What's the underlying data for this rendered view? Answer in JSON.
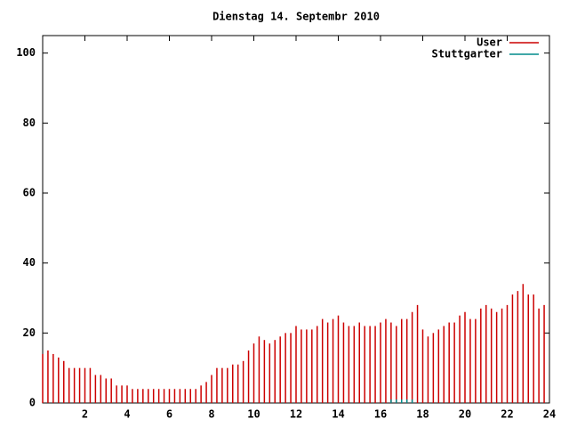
{
  "chart_data": {
    "type": "impulse",
    "title": "Dienstag 14. Septembr 2010",
    "xlim": [
      0,
      24
    ],
    "xticks": [
      2,
      4,
      6,
      8,
      10,
      12,
      14,
      16,
      18,
      20,
      22,
      24
    ],
    "ylim": [
      0,
      105
    ],
    "yticks": [
      0,
      20,
      40,
      60,
      80,
      100
    ],
    "legend": "top-right",
    "series": [
      {
        "name": "User",
        "color": "#cc0000",
        "x": [
          0,
          0.25,
          0.5,
          0.75,
          1,
          1.25,
          1.5,
          1.75,
          2,
          2.25,
          2.5,
          2.75,
          3,
          3.25,
          3.5,
          3.75,
          4,
          4.25,
          4.5,
          4.75,
          5,
          5.25,
          5.5,
          5.75,
          6,
          6.25,
          6.5,
          6.75,
          7,
          7.25,
          7.5,
          7.75,
          8,
          8.25,
          8.5,
          8.75,
          9,
          9.25,
          9.5,
          9.75,
          10,
          10.25,
          10.5,
          10.75,
          11,
          11.25,
          11.5,
          11.75,
          12,
          12.25,
          12.5,
          12.75,
          13,
          13.25,
          13.5,
          13.75,
          14,
          14.25,
          14.5,
          14.75,
          15,
          15.25,
          15.5,
          15.75,
          16,
          16.25,
          16.5,
          16.75,
          17,
          17.25,
          17.5,
          17.75,
          18,
          18.25,
          18.5,
          18.75,
          19,
          19.25,
          19.5,
          19.75,
          20,
          20.25,
          20.5,
          20.75,
          21,
          21.25,
          21.5,
          21.75,
          22,
          22.25,
          22.5,
          22.75,
          23,
          23.25,
          23.5,
          23.75
        ],
        "values": [
          14,
          15,
          14,
          13,
          12,
          10,
          10,
          10,
          10,
          10,
          8,
          8,
          7,
          7,
          5,
          5,
          5,
          4,
          4,
          4,
          4,
          4,
          4,
          4,
          4,
          4,
          4,
          4,
          4,
          4,
          5,
          6,
          8,
          10,
          10,
          10,
          11,
          11,
          12,
          15,
          17,
          19,
          18,
          17,
          18,
          19,
          20,
          20,
          22,
          21,
          21,
          21,
          22,
          24,
          23,
          24,
          25,
          23,
          22,
          22,
          23,
          22,
          22,
          22,
          23,
          24,
          23,
          22,
          24,
          24,
          26,
          28,
          21,
          19,
          20,
          21,
          22,
          23,
          23,
          25,
          26,
          24,
          24,
          27,
          28,
          27,
          26,
          27,
          28,
          31,
          32,
          34,
          31,
          31,
          27,
          28
        ]
      },
      {
        "name": "Stuttgarter",
        "color": "#008b8b",
        "x": [
          16.5,
          16.75,
          17,
          17.25,
          17.5
        ],
        "values": [
          1,
          1,
          1,
          1,
          1
        ]
      }
    ]
  }
}
